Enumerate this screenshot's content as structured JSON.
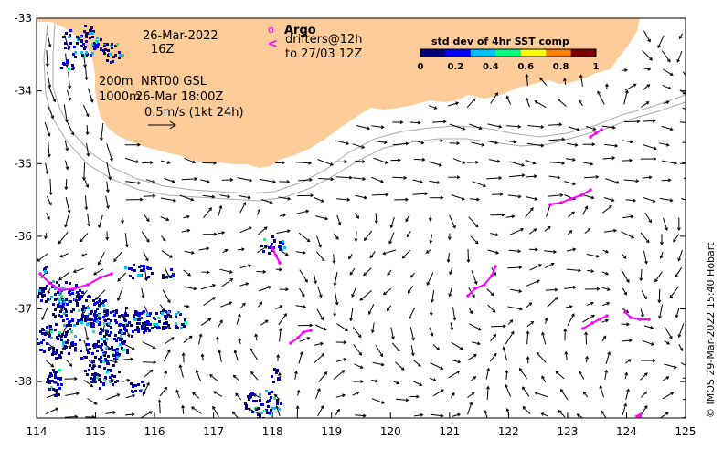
{
  "map": {
    "lon_range": [
      114,
      125
    ],
    "lat_range": [
      -38.5,
      -33
    ],
    "lon_ticks": [
      "114",
      "115",
      "116",
      "117",
      "118",
      "119",
      "120",
      "121",
      "122",
      "123",
      "124",
      "125"
    ],
    "lat_ticks": [
      "-33",
      "-34",
      "-35",
      "-36",
      "-37",
      "-38"
    ],
    "land_color": "#fdcc99",
    "current_color": "#000000",
    "sst_colors": [
      "#000080",
      "#0000ff",
      "#00c0ff",
      "#00ff80",
      "#ffff00",
      "#ff8000",
      "#800000"
    ]
  },
  "annotations": {
    "date": "26-Mar-2022",
    "hour": "16Z",
    "depth_200": "200m",
    "depth_1000": "1000m",
    "model": "NRT00 GSL",
    "model_time": "26-Mar 18:00Z",
    "scale_arrow": "0.5m/s (1kt 24h)"
  },
  "legend": {
    "argo_symbol": "o",
    "argo_label": "Argo",
    "drifters_symbol": "<",
    "drifters_label": "drifters@12h",
    "drifters_until": "to 27/03 12Z",
    "drifter_color": "#ff00ff"
  },
  "colorbar": {
    "title": "std dev of 4hr SST comp",
    "ticks": [
      "0",
      "0.2",
      "0.4",
      "0.6",
      "0.8",
      "1"
    ]
  },
  "credit": "© IMOS 29-Mar-2022 15:40 Hobart"
}
